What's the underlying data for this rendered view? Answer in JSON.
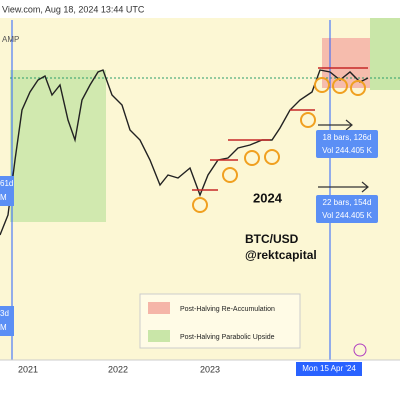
{
  "header": {
    "source": "View.com, Aug 18, 2024 13:44 UTC",
    "indicator": "AMP"
  },
  "annotations": {
    "year": "2024",
    "pair": "BTC/USD",
    "author": "@rektcapital"
  },
  "left_boxes": [
    {
      "line1": "61d",
      "line2": "M"
    },
    {
      "line1": "3d",
      "line2": "M"
    }
  ],
  "measure_boxes": [
    {
      "line1": "18 bars, 126d",
      "line2": "Vol 244.405 K"
    },
    {
      "line1": "22 bars, 154d",
      "line2": "Vol 244.405 K"
    }
  ],
  "legend": {
    "items": [
      "Post-Halving Re-Accumulation",
      "Post-Halving Parabolic Upside"
    ]
  },
  "x_axis": {
    "labels": [
      "2021",
      "2022",
      "2023"
    ],
    "cursor_label": "Mon 15 Apr '24"
  }
}
